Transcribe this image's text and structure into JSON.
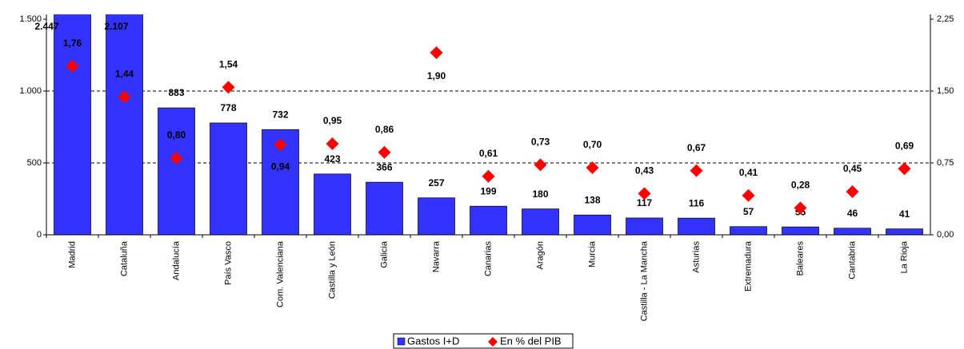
{
  "chart_data": {
    "type": "bar",
    "categories": [
      "Madrid",
      "Cataluña",
      "Andalucía",
      "País Vasco",
      "Com. Valenciana",
      "Castilla y León",
      "Galicia",
      "Navarra",
      "Canarias",
      "Aragón",
      "Murcia",
      "Castilla - La Mancha",
      "Asturias",
      "Extremadura",
      "Baleares",
      "Cantabria",
      "La Rioja"
    ],
    "series": [
      {
        "name": "Gastos I+D",
        "color": "#3333ff",
        "type": "bar",
        "values": [
          2447,
          2107,
          883,
          778,
          732,
          423,
          366,
          257,
          199,
          180,
          138,
          117,
          116,
          57,
          55,
          46,
          41
        ],
        "value_labels": [
          "2.447",
          "2.107",
          "883",
          "778",
          "732",
          "423",
          "366",
          "257",
          "199",
          "180",
          "138",
          "117",
          "116",
          "57",
          "55",
          "46",
          "41"
        ]
      },
      {
        "name": "En % del PIB",
        "color": "#ff0000",
        "type": "scatter",
        "axis": "y2",
        "values": [
          1.76,
          1.44,
          0.8,
          1.54,
          0.94,
          0.95,
          0.86,
          1.9,
          0.61,
          0.73,
          0.7,
          0.43,
          0.67,
          0.41,
          0.28,
          0.45,
          0.69
        ],
        "value_labels": [
          "1,76",
          "1,44",
          "0,80",
          "1,54",
          "0,94",
          "0,95",
          "0,86",
          "1,90",
          "0,61",
          "0,73",
          "0,70",
          "0,43",
          "0,67",
          "0,41",
          "0,28",
          "0,45",
          "0,69"
        ]
      }
    ],
    "ylim": [
      0,
      1500
    ],
    "yticks": [
      0,
      500,
      {
        "value": 1000,
        "label": "1.000"
      },
      {
        "value": 1500,
        "label": "1.500"
      }
    ],
    "y2lim": [
      0,
      2.25
    ],
    "y2ticks": [
      {
        "value": 0,
        "label": "0,00"
      },
      {
        "value": 0.75,
        "label": "0,75"
      },
      {
        "value": 1.5,
        "label": "1,50"
      },
      {
        "value": 2.25,
        "label": "2,25"
      }
    ],
    "grid": true,
    "legend": "bottom"
  }
}
